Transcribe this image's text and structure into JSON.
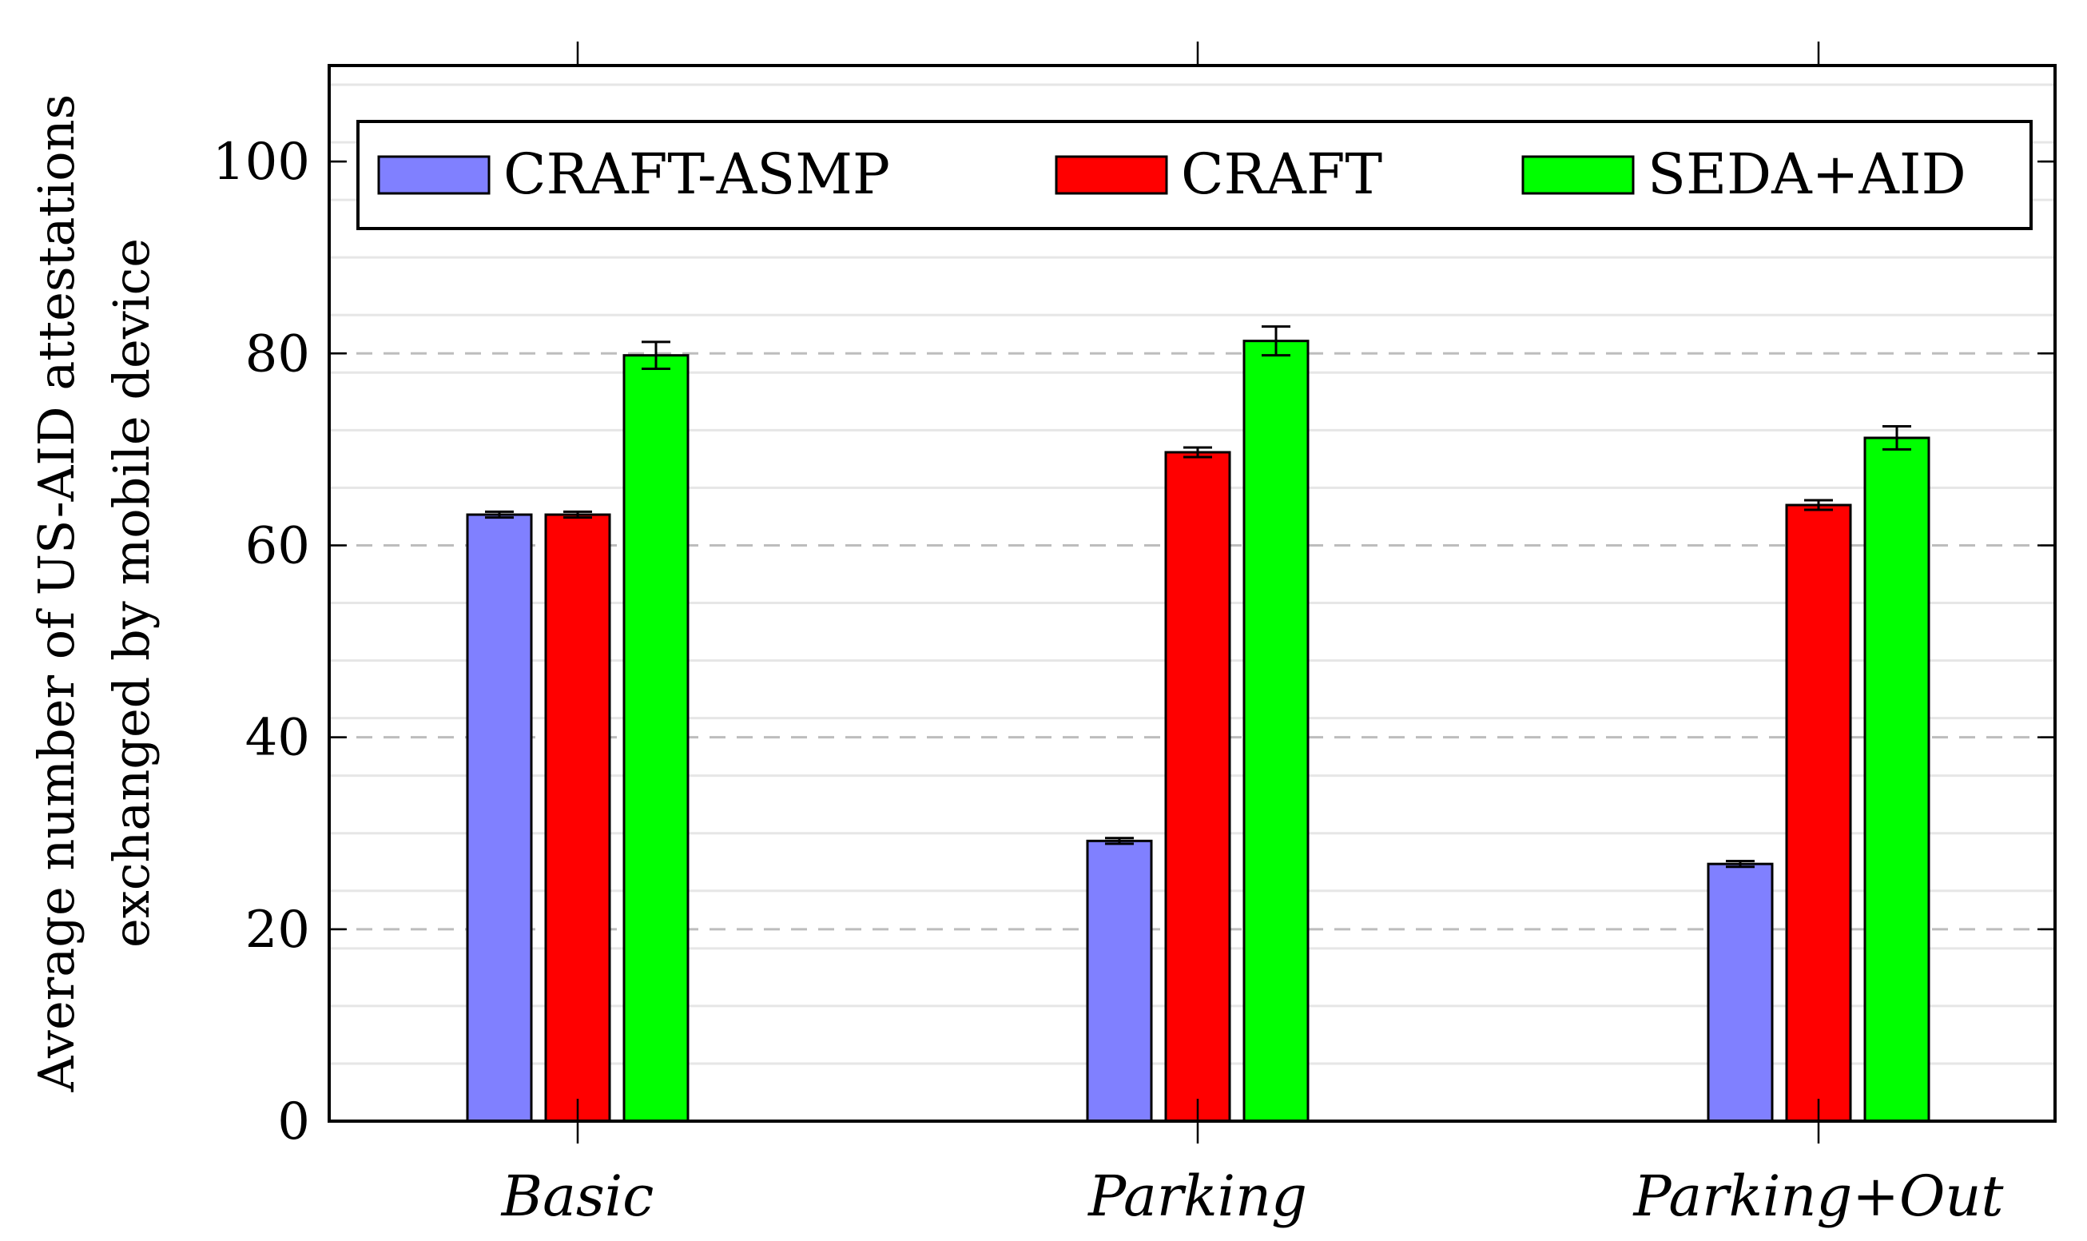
{
  "chart_data": {
    "type": "bar",
    "ylabel": [
      "Average number of US-AID attestations",
      "exchanged by mobile device"
    ],
    "xlabel": "",
    "categories": [
      "Basic",
      "Parking",
      "Parking+Out"
    ],
    "ylim": [
      0,
      110
    ],
    "yticks": [
      "0",
      "20",
      "40",
      "60",
      "80",
      "100"
    ],
    "ytick_values": [
      0,
      20,
      40,
      60,
      80,
      100
    ],
    "grid": "horizontal, dashed major lines and light minor lines",
    "legend_position": "top",
    "series": [
      {
        "name": "CRAFT-ASMP",
        "color": "#8080ff",
        "values": [
          63.2,
          29.2,
          26.8
        ],
        "errors": [
          0.3,
          0.3,
          0.3
        ]
      },
      {
        "name": "CRAFT",
        "color": "#ff0000",
        "values": [
          63.2,
          69.7,
          64.2
        ],
        "errors": [
          0.3,
          0.5,
          0.5
        ]
      },
      {
        "name": "SEDA+AID",
        "color": "#00ff00",
        "values": [
          79.8,
          81.3,
          71.2
        ],
        "errors": [
          1.4,
          1.5,
          1.2
        ]
      }
    ]
  }
}
